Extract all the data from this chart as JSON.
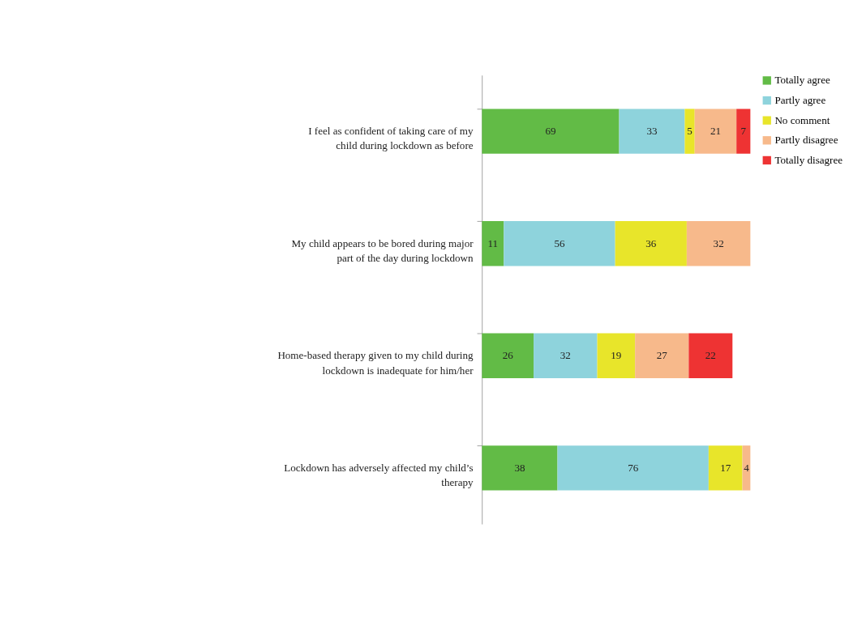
{
  "chart_data": {
    "type": "bar",
    "orientation": "horizontal",
    "stacked": true,
    "data_labels": true,
    "legend": "right",
    "grid": false,
    "categories": [
      "I feel as confident of taking care of my child during lockdown as before",
      "My child appears to be bored during major part of the day during lockdown",
      "Home-based therapy given to  my child during lockdown is inadequate for him/her",
      "Lockdown has adversely affected my child’s therapy"
    ],
    "series": [
      {
        "name": "Totally agree",
        "color": "#62bb46",
        "values": [
          69,
          11,
          26,
          38
        ]
      },
      {
        "name": "Partly agree",
        "color": "#8ed3dc",
        "values": [
          33,
          56,
          32,
          76
        ]
      },
      {
        "name": "No comment",
        "color": "#e8e52a",
        "values": [
          5,
          36,
          19,
          17
        ]
      },
      {
        "name": "Partly disagree",
        "color": "#f7b98b",
        "values": [
          21,
          32,
          27,
          4
        ]
      },
      {
        "name": "Totally disagree",
        "color": "#ee3333",
        "values": [
          7,
          null,
          22,
          null
        ]
      }
    ]
  }
}
